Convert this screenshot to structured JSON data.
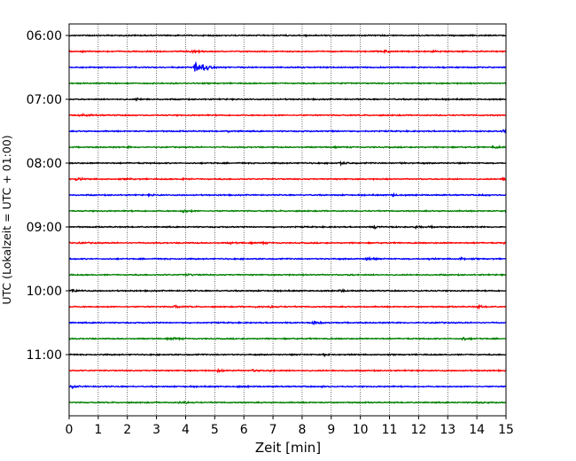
{
  "chart_data": {
    "type": "line",
    "title": "",
    "xlabel": "Zeit  [min]",
    "ylabel": "UTC (Lokalzeit = UTC + 01:00)",
    "xlim": [
      0,
      15
    ],
    "x_ticks": [
      0,
      1,
      2,
      3,
      4,
      5,
      6,
      7,
      8,
      9,
      10,
      11,
      12,
      13,
      14,
      15
    ],
    "grid": true,
    "trace_colors": [
      "#000000",
      "#ff0000",
      "#0000ff",
      "#008000"
    ],
    "y_tick_labels": [
      "06:00",
      "07:00",
      "08:00",
      "09:00",
      "10:00",
      "11:00"
    ],
    "traces": [
      {
        "label": "06:00",
        "color": "#000000",
        "events": [
          [
            0.6,
            0.3
          ],
          [
            8.1,
            0.35
          ]
        ]
      },
      {
        "label": "06:15",
        "color": "#ff0000",
        "events": [
          [
            0.45,
            0.3
          ],
          [
            4.2,
            0.9
          ],
          [
            10.8,
            0.9
          ],
          [
            12.5,
            0.4
          ]
        ]
      },
      {
        "label": "06:30",
        "color": "#0000ff",
        "events": [
          [
            4.3,
            4.0
          ],
          [
            4.6,
            1.2
          ]
        ]
      },
      {
        "label": "06:45",
        "color": "#008000",
        "events": [
          [
            9.3,
            0.4
          ]
        ]
      },
      {
        "label": "07:00",
        "color": "#000000",
        "events": [
          [
            2.3,
            0.45
          ]
        ]
      },
      {
        "label": "07:15",
        "color": "#ff0000",
        "events": [
          [
            0.35,
            0.9
          ]
        ]
      },
      {
        "label": "07:30",
        "color": "#0000ff",
        "events": [
          [
            5.45,
            0.7
          ],
          [
            9.0,
            0.4
          ],
          [
            14.85,
            0.9
          ]
        ]
      },
      {
        "label": "07:45",
        "color": "#008000",
        "events": [
          [
            2.0,
            0.35
          ],
          [
            14.55,
            0.8
          ]
        ]
      },
      {
        "label": "08:00",
        "color": "#000000",
        "events": [
          [
            9.3,
            0.8
          ],
          [
            11.4,
            0.35
          ]
        ]
      },
      {
        "label": "08:15",
        "color": "#ff0000",
        "events": [
          [
            0.25,
            0.8
          ],
          [
            2.0,
            0.4
          ],
          [
            3.9,
            0.6
          ],
          [
            14.9,
            0.9
          ]
        ]
      },
      {
        "label": "08:30",
        "color": "#0000ff",
        "events": [
          [
            2.7,
            0.3
          ],
          [
            11.1,
            0.8
          ],
          [
            14.2,
            0.4
          ]
        ]
      },
      {
        "label": "08:45",
        "color": "#008000",
        "events": [
          [
            3.9,
            0.9
          ],
          [
            14.95,
            0.8
          ]
        ]
      },
      {
        "label": "09:00",
        "color": "#000000",
        "events": [
          [
            10.45,
            0.9
          ],
          [
            11.9,
            0.7
          ],
          [
            12.4,
            0.4
          ]
        ]
      },
      {
        "label": "09:15",
        "color": "#ff0000",
        "events": [
          [
            0.35,
            0.4
          ],
          [
            5.5,
            0.5
          ],
          [
            6.6,
            0.4
          ],
          [
            14.95,
            0.9
          ]
        ]
      },
      {
        "label": "09:30",
        "color": "#0000ff",
        "events": [
          [
            10.2,
            0.7
          ],
          [
            12.3,
            0.3
          ],
          [
            13.4,
            0.7
          ]
        ]
      },
      {
        "label": "09:45",
        "color": "#008000",
        "events": [
          [
            4.0,
            0.8
          ],
          [
            9.6,
            0.4
          ]
        ]
      },
      {
        "label": "10:00",
        "color": "#000000",
        "events": [
          [
            0.1,
            0.9
          ],
          [
            9.3,
            0.8
          ],
          [
            11.8,
            0.3
          ]
        ]
      },
      {
        "label": "10:15",
        "color": "#ff0000",
        "events": [
          [
            3.6,
            0.7
          ],
          [
            6.4,
            0.5
          ],
          [
            6.9,
            0.4
          ],
          [
            14.0,
            0.8
          ]
        ]
      },
      {
        "label": "10:30",
        "color": "#0000ff",
        "events": [
          [
            8.4,
            0.9
          ],
          [
            12.5,
            0.3
          ]
        ]
      },
      {
        "label": "10:45",
        "color": "#008000",
        "events": [
          [
            3.5,
            0.7
          ],
          [
            13.5,
            0.7
          ]
        ]
      },
      {
        "label": "11:00",
        "color": "#000000",
        "events": [
          [
            8.7,
            0.8
          ]
        ]
      },
      {
        "label": "11:15",
        "color": "#ff0000",
        "events": [
          [
            5.1,
            0.8
          ],
          [
            6.3,
            0.6
          ],
          [
            6.9,
            0.5
          ]
        ]
      },
      {
        "label": "11:30",
        "color": "#0000ff",
        "events": [
          [
            0.1,
            0.8
          ],
          [
            5.8,
            0.4
          ],
          [
            8.7,
            0.7
          ]
        ]
      },
      {
        "label": "11:45",
        "color": "#008000",
        "events": [
          [
            3.8,
            0.9
          ],
          [
            13.9,
            0.7
          ]
        ]
      }
    ]
  }
}
